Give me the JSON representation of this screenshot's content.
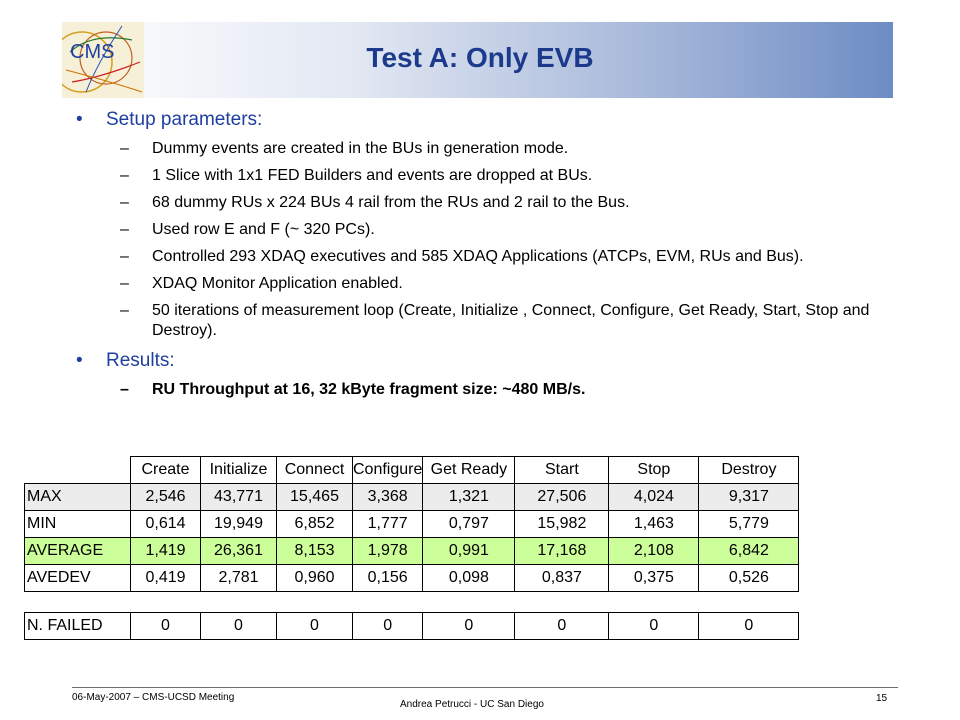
{
  "slide": {
    "title": "Test A: Only EVB",
    "logo_text": "CMS"
  },
  "sections": [
    {
      "bullet": "Setup parameters:",
      "items": [
        {
          "text": "Dummy events are created in the BUs in generation mode.",
          "bold": false
        },
        {
          "text": "1 Slice with 1x1 FED Builders and events are dropped at BUs.",
          "bold": false
        },
        {
          "text": "68 dummy RUs x 224 BUs 4 rail from the RUs and 2 rail to the Bus.",
          "bold": false
        },
        {
          "text": "Used row E and F (~ 320 PCs).",
          "bold": false
        },
        {
          "text": "Controlled 293 XDAQ executives and 585 XDAQ Applications (ATCPs, EVM, RUs and Bus).",
          "bold": false
        },
        {
          "text": "XDAQ Monitor Application enabled.",
          "bold": false
        },
        {
          "text": "50 iterations of measurement loop (Create, Initialize , Connect, Configure, Get Ready, Start, Stop and Destroy).",
          "bold": false
        }
      ]
    },
    {
      "bullet": "Results:",
      "items": [
        {
          "text": "RU Throughput at 16, 32 kByte fragment size: ~480 MB/s.",
          "bold": true
        }
      ]
    }
  ],
  "table": {
    "columns": [
      "Create",
      "Initialize",
      "Connect",
      "Configure",
      "Get Ready",
      "Start",
      "Stop",
      "Destroy"
    ],
    "rows": [
      {
        "label": "MAX",
        "values": [
          "2,546",
          "43,771",
          "15,465",
          "3,368",
          "1,321",
          "27,506",
          "4,024",
          "9,317"
        ],
        "shade": "gray"
      },
      {
        "label": "MIN",
        "values": [
          "0,614",
          "19,949",
          "6,852",
          "1,777",
          "0,797",
          "15,982",
          "1,463",
          "5,779"
        ],
        "shade": "none"
      },
      {
        "label": "AVERAGE",
        "values": [
          "1,419",
          "26,361",
          "8,153",
          "1,978",
          "0,991",
          "17,168",
          "2,108",
          "6,842"
        ],
        "shade": "green"
      },
      {
        "label": "AVEDEV",
        "values": [
          "0,419",
          "2,781",
          "0,960",
          "0,156",
          "0,098",
          "0,837",
          "0,375",
          "0,526"
        ],
        "shade": "none"
      }
    ],
    "failed": {
      "label": "N. FAILED",
      "values": [
        "0",
        "0",
        "0",
        "0",
        "0",
        "0",
        "0",
        "0"
      ]
    }
  },
  "footer": {
    "left": "06-May-2007 – CMS-UCSD Meeting",
    "center": "Andrea Petrucci - UC San Diego",
    "right": "15"
  },
  "colors": {
    "title": "#1b3a8c",
    "bullet": "#1e3fa0",
    "average_row": "#ccff99",
    "max_row": "#ececec"
  }
}
